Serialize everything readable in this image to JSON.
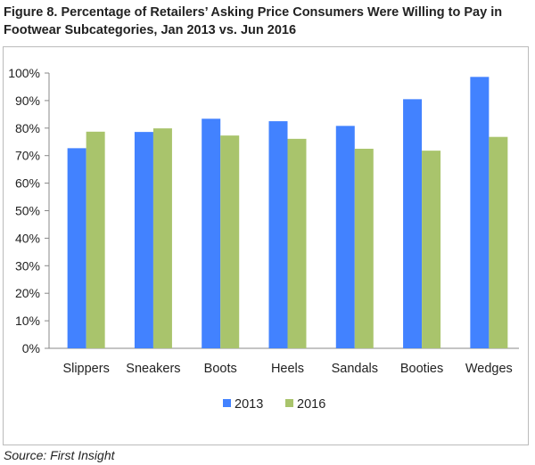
{
  "chart_data": {
    "type": "bar",
    "title": "Figure 8. Percentage of Retailers’ Asking Price Consumers Were Willing to Pay in Footwear Subcategories, Jan 2013 vs. Jun 2016",
    "categories": [
      "Slippers",
      "Sneakers",
      "Boots",
      "Heels",
      "Sandals",
      "Booties",
      "Wedges"
    ],
    "series": [
      {
        "name": "2013",
        "color": "#4282FF",
        "values": [
          72.7,
          78.6,
          83.4,
          82.5,
          80.8,
          90.5,
          98.6
        ]
      },
      {
        "name": "2016",
        "color": "#A9C46C",
        "values": [
          78.7,
          79.9,
          77.3,
          76.1,
          72.5,
          71.8,
          76.8
        ]
      }
    ],
    "ylim": [
      0,
      100
    ],
    "yticks": [
      "0%",
      "10%",
      "20%",
      "30%",
      "40%",
      "50%",
      "60%",
      "70%",
      "80%",
      "90%",
      "100%"
    ],
    "xlabel": "",
    "ylabel": "",
    "grid": false,
    "legend": "bottom"
  },
  "source": "Source: First Insight"
}
